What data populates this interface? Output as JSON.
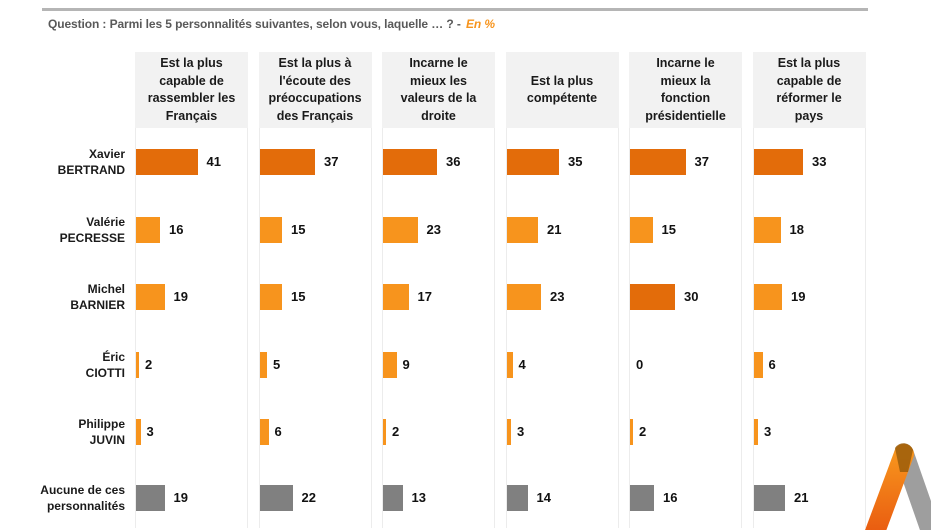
{
  "question": {
    "text": "Question : Parmi les 5 personnalités suivantes, selon vous, laquelle … ? -",
    "unit": "En %"
  },
  "colors": {
    "highlight": "#E36C0A",
    "candidate": "#F7941D",
    "none": "#808080"
  },
  "chart_data": {
    "type": "bar",
    "orientation": "horizontal",
    "unit": "%",
    "title": "Question : Parmi les 5 personnalités suivantes, selon vous, laquelle … ? - En %",
    "categories": [
      "Xavier BERTRAND",
      "Valérie PECRESSE",
      "Michel BARNIER",
      "Éric CIOTTI",
      "Philippe JUVIN",
      "Aucune de ces personnalités"
    ],
    "row_labels": [
      [
        "Xavier",
        "BERTRAND"
      ],
      [
        "Valérie",
        "PECRESSE"
      ],
      [
        "Michel",
        "BARNIER"
      ],
      [
        "Éric",
        "CIOTTI"
      ],
      [
        "Philippe",
        "JUVIN"
      ],
      [
        "Aucune de ces",
        "personnalités"
      ]
    ],
    "series": [
      {
        "name": "Est la plus capable de rassembler les Français",
        "header_lines": [
          "Est la plus",
          "capable de",
          "rassembler les",
          "Français"
        ],
        "values": [
          41,
          16,
          19,
          2,
          3,
          19
        ],
        "highlight": [
          true,
          false,
          false,
          false,
          false,
          false
        ]
      },
      {
        "name": "Est la plus à l'écoute des préoccupations des Français",
        "header_lines": [
          "Est la plus à",
          "l'écoute des",
          "préoccupations",
          "des Français"
        ],
        "values": [
          37,
          15,
          15,
          5,
          6,
          22
        ],
        "highlight": [
          true,
          false,
          false,
          false,
          false,
          false
        ]
      },
      {
        "name": "Incarne le mieux les valeurs de la droite",
        "header_lines": [
          "Incarne le",
          "mieux les",
          "valeurs de la",
          "droite"
        ],
        "values": [
          36,
          23,
          17,
          9,
          2,
          13
        ],
        "highlight": [
          true,
          false,
          false,
          false,
          false,
          false
        ]
      },
      {
        "name": "Est la plus compétente",
        "header_lines": [
          "Est la plus",
          "compétente"
        ],
        "values": [
          35,
          21,
          23,
          4,
          3,
          14
        ],
        "highlight": [
          true,
          false,
          false,
          false,
          false,
          false
        ]
      },
      {
        "name": "Incarne le mieux la fonction présidentielle",
        "header_lines": [
          "Incarne le",
          "mieux la",
          "fonction",
          "présidentielle"
        ],
        "values": [
          37,
          15,
          30,
          0,
          2,
          16
        ],
        "highlight": [
          true,
          false,
          true,
          false,
          false,
          false
        ]
      },
      {
        "name": "Est la plus capable de réformer le pays",
        "header_lines": [
          "Est la plus",
          "capable de",
          "réformer le",
          "pays"
        ],
        "values": [
          33,
          18,
          19,
          6,
          3,
          21
        ],
        "highlight": [
          true,
          false,
          false,
          false,
          false,
          false
        ]
      }
    ],
    "xlim": [
      0,
      60
    ],
    "grid": false,
    "legend": "none"
  },
  "logo": {
    "icon": "brand-logo-icon"
  }
}
